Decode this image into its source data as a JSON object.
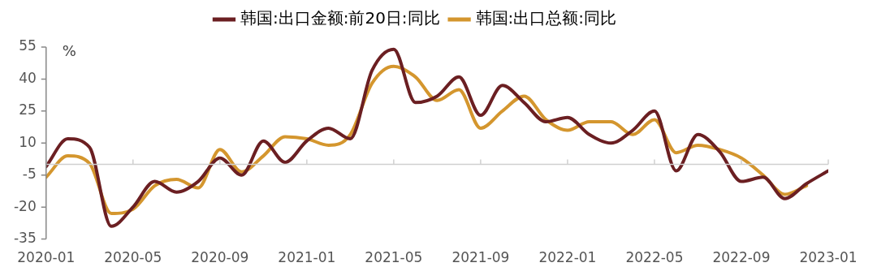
{
  "chart_data": {
    "type": "line",
    "ylabel": "%",
    "x": [
      "2020-01",
      "2020-02",
      "2020-03",
      "2020-04",
      "2020-05",
      "2020-06",
      "2020-07",
      "2020-08",
      "2020-09",
      "2020-10",
      "2020-11",
      "2020-12",
      "2021-01",
      "2021-02",
      "2021-03",
      "2021-04",
      "2021-05",
      "2021-06",
      "2021-07",
      "2021-08",
      "2021-09",
      "2021-10",
      "2021-11",
      "2021-12",
      "2022-01",
      "2022-02",
      "2022-03",
      "2022-04",
      "2022-05",
      "2022-06",
      "2022-07",
      "2022-08",
      "2022-09",
      "2022-10",
      "2022-11",
      "2022-12",
      "2023-01"
    ],
    "series": [
      {
        "name": "韩国:出口金额:前20日:同比",
        "color": "#6b1f22",
        "values": [
          -1,
          12,
          8,
          -29,
          -20,
          -8,
          -13,
          -8,
          3,
          -5,
          11,
          1,
          11,
          17,
          12,
          44,
          54,
          29,
          32,
          41,
          23,
          37,
          29,
          20,
          22,
          14,
          10,
          16,
          25,
          -3,
          14,
          6,
          -8,
          -6,
          -16,
          -9,
          -3
        ]
      },
      {
        "name": "韩国:出口总额:同比",
        "color": "#d4962e",
        "values": [
          -6,
          4,
          0.5,
          -23,
          -21,
          -10,
          -7,
          -11,
          7,
          -3.5,
          4,
          13,
          12,
          9,
          14,
          38,
          46,
          41,
          30,
          35,
          17,
          25,
          32,
          21,
          16,
          20,
          20,
          14,
          21,
          5.5,
          9,
          7,
          3,
          -5,
          -14,
          -10,
          null
        ]
      }
    ],
    "xlim": [
      "2020-01",
      "2023-01"
    ],
    "xticks": [
      "2020-01",
      "2020-05",
      "2020-09",
      "2021-01",
      "2021-05",
      "2021-09",
      "2022-01",
      "2022-05",
      "2022-09",
      "2023-01"
    ],
    "ylim": [
      -35,
      55
    ],
    "yticks": [
      -35,
      -20,
      -5,
      10,
      25,
      40,
      55
    ],
    "grid": false,
    "legend": "top",
    "marker": "none",
    "line_style": "solid"
  }
}
